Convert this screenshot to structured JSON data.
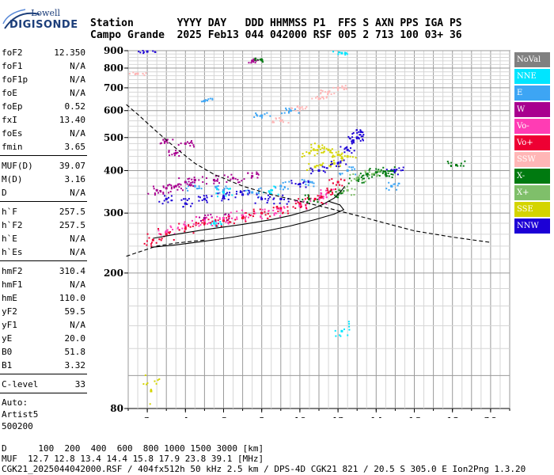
{
  "logo": {
    "line1": "Lowell",
    "line2": "DIGISONDE"
  },
  "header": {
    "line1": "Station       YYYY DAY   DDD HHMMSS P1  FFS S AXN PPS IGA PS",
    "line2": "Campo Grande  2025 Feb13 044 042000 RSF 005 2 713 100 03+ 36"
  },
  "params": {
    "group1": [
      {
        "label": "foF2",
        "value": "12.350"
      },
      {
        "label": "foF1",
        "value": "N/A"
      },
      {
        "label": "foF1p",
        "value": "N/A"
      },
      {
        "label": "foE",
        "value": "N/A"
      },
      {
        "label": "foEp",
        "value": "0.52"
      },
      {
        "label": "fxI",
        "value": "13.40"
      },
      {
        "label": "foEs",
        "value": "N/A"
      },
      {
        "label": "fmin",
        "value": "3.65"
      }
    ],
    "group2": [
      {
        "label": "MUF(D)",
        "value": "39.07"
      },
      {
        "label": "M(D)",
        "value": "3.16"
      },
      {
        "label": "D",
        "value": "N/A"
      }
    ],
    "group3": [
      {
        "label": "h`F",
        "value": "257.5"
      },
      {
        "label": "h`F2",
        "value": "257.5"
      },
      {
        "label": "h`E",
        "value": "N/A"
      },
      {
        "label": "h`Es",
        "value": "N/A"
      }
    ],
    "group4": [
      {
        "label": "hmF2",
        "value": "310.4"
      },
      {
        "label": "hmF1",
        "value": "N/A"
      },
      {
        "label": "hmE",
        "value": "110.0"
      },
      {
        "label": "yF2",
        "value": "59.5"
      },
      {
        "label": "yF1",
        "value": "N/A"
      },
      {
        "label": "yE",
        "value": "20.0"
      },
      {
        "label": "B0",
        "value": "51.8"
      },
      {
        "label": "B1",
        "value": "3.32"
      }
    ],
    "group5": [
      {
        "label": "C-level",
        "value": "33"
      }
    ],
    "auto": [
      "Auto:",
      "Artist5",
      "500200"
    ]
  },
  "legend": [
    {
      "label": "NoVal",
      "color": "#808080",
      "text_color": "#ffffff"
    },
    {
      "label": "NNE",
      "color": "#00e5ff",
      "text_color": "#ffffff"
    },
    {
      "label": "E",
      "color": "#3da5f4",
      "text_color": "#ffffff"
    },
    {
      "label": "W",
      "color": "#a8008f",
      "text_color": "#ffffff"
    },
    {
      "label": "Vo-",
      "color": "#ff3cb4",
      "text_color": "#ffffff"
    },
    {
      "label": "Vo+",
      "color": "#ee0033",
      "text_color": "#ffffff"
    },
    {
      "label": "SSW",
      "color": "#ffb6b6",
      "text_color": "#ffffff"
    },
    {
      "label": "X-",
      "color": "#007a10",
      "text_color": "#ffffff"
    },
    {
      "label": "X+",
      "color": "#7fbf6a",
      "text_color": "#ffffff"
    },
    {
      "label": "SSE",
      "color": "#d4d400",
      "text_color": "#ffffff"
    },
    {
      "label": "NNW",
      "color": "#1c00d6",
      "text_color": "#ffffff"
    }
  ],
  "chart_data": {
    "type": "scatter",
    "title": "",
    "xlabel": "",
    "ylabel": "",
    "xlim": [
      1,
      21
    ],
    "ylim": [
      80,
      900
    ],
    "x_ticks": [
      2,
      4,
      6,
      8,
      10,
      12,
      14,
      16,
      18,
      20
    ],
    "y_ticks": [
      80,
      200,
      300,
      400,
      500,
      600,
      700,
      800,
      900
    ],
    "grid": true,
    "legend_position": "right",
    "series": [
      {
        "name": "NNE",
        "points": [
          [
            12.2,
            885
          ],
          [
            12.2,
            135
          ],
          [
            8.5,
            350
          ],
          [
            5.5,
            280
          ],
          [
            6.0,
            345
          ]
        ]
      },
      {
        "name": "E",
        "points": [
          [
            4.5,
            360
          ],
          [
            6.0,
            350
          ],
          [
            7.5,
            345
          ],
          [
            9.0,
            360
          ],
          [
            10.5,
            370
          ],
          [
            12.5,
            400
          ],
          [
            8.0,
            580
          ],
          [
            9.5,
            600
          ],
          [
            5.0,
            640
          ],
          [
            14.8,
            360
          ]
        ]
      },
      {
        "name": "W",
        "points": [
          [
            2.5,
            350
          ],
          [
            3.0,
            355
          ],
          [
            3.5,
            360
          ],
          [
            4.0,
            370
          ],
          [
            4.5,
            375
          ],
          [
            5.5,
            375
          ],
          [
            6.5,
            380
          ],
          [
            7.5,
            385
          ],
          [
            6.0,
            290
          ],
          [
            5.0,
            290
          ],
          [
            3.0,
            490
          ],
          [
            3.5,
            450
          ],
          [
            4.0,
            480
          ],
          [
            7.5,
            840
          ]
        ]
      },
      {
        "name": "Vo-",
        "points": [
          [
            3.0,
            265
          ],
          [
            4.0,
            275
          ],
          [
            5.0,
            285
          ],
          [
            6.0,
            290
          ],
          [
            7.0,
            295
          ],
          [
            8.0,
            300
          ],
          [
            9.0,
            305
          ],
          [
            10.0,
            315
          ],
          [
            11.0,
            330
          ],
          [
            11.5,
            345
          ]
        ]
      },
      {
        "name": "Vo+",
        "points": [
          [
            2.3,
            250
          ],
          [
            3.0,
            260
          ],
          [
            4.0,
            270
          ],
          [
            5.0,
            280
          ],
          [
            6.0,
            285
          ],
          [
            7.0,
            290
          ],
          [
            8.0,
            300
          ],
          [
            9.0,
            310
          ],
          [
            10.0,
            320
          ],
          [
            10.8,
            330
          ],
          [
            11.5,
            345
          ],
          [
            12.0,
            370
          ]
        ]
      },
      {
        "name": "SSW",
        "points": [
          [
            9.0,
            560
          ],
          [
            10.0,
            610
          ],
          [
            11.0,
            650
          ],
          [
            11.5,
            680
          ],
          [
            12.0,
            700
          ],
          [
            1.5,
            770
          ]
        ]
      },
      {
        "name": "X-",
        "points": [
          [
            8.0,
            845
          ],
          [
            10.5,
            330
          ],
          [
            12.0,
            340
          ],
          [
            13.0,
            375
          ],
          [
            13.5,
            390
          ],
          [
            14.0,
            395
          ],
          [
            14.5,
            390
          ],
          [
            14.8,
            400
          ],
          [
            18.2,
            415
          ]
        ]
      },
      {
        "name": "X+",
        "points": [
          [
            12.5,
            350
          ],
          [
            13.0,
            380
          ],
          [
            13.8,
            390
          ]
        ]
      },
      {
        "name": "SSE",
        "points": [
          [
            10.5,
            450
          ],
          [
            11.0,
            470
          ],
          [
            11.5,
            460
          ],
          [
            12.0,
            445
          ],
          [
            10.8,
            410
          ],
          [
            11.8,
            420
          ],
          [
            12.5,
            440
          ],
          [
            2.2,
            90
          ]
        ]
      },
      {
        "name": "NNW",
        "points": [
          [
            2.0,
            895
          ],
          [
            3.0,
            330
          ],
          [
            4.0,
            320
          ],
          [
            5.0,
            330
          ],
          [
            6.0,
            335
          ],
          [
            7.0,
            340
          ],
          [
            8.0,
            330
          ],
          [
            9.0,
            330
          ],
          [
            10.0,
            365
          ],
          [
            11.0,
            400
          ],
          [
            12.0,
            420
          ],
          [
            12.5,
            460
          ],
          [
            13.0,
            500
          ],
          [
            13.2,
            520
          ],
          [
            12.8,
            490
          ],
          [
            15.0,
            400
          ]
        ]
      }
    ],
    "curves": [
      {
        "name": "O-mode profile",
        "style": "solid",
        "points": [
          [
            2.3,
            253
          ],
          [
            3.5,
            260
          ],
          [
            5.0,
            268
          ],
          [
            7.0,
            278
          ],
          [
            8.5,
            287
          ],
          [
            9.5,
            295
          ],
          [
            10.5,
            306
          ],
          [
            11.2,
            318
          ],
          [
            11.8,
            332
          ],
          [
            12.1,
            345
          ],
          [
            12.3,
            356
          ],
          [
            12.35,
            360
          ]
        ]
      },
      {
        "name": "N(h) profile",
        "style": "solid",
        "points": [
          [
            2.2,
            238
          ],
          [
            3.5,
            242
          ],
          [
            5.0,
            248
          ],
          [
            6.5,
            255
          ],
          [
            8.0,
            264
          ],
          [
            9.5,
            275
          ],
          [
            10.8,
            287
          ],
          [
            11.8,
            298
          ],
          [
            12.3,
            307
          ],
          [
            12.1,
            317
          ],
          [
            11.5,
            325
          ]
        ]
      },
      {
        "name": "MUF curve",
        "style": "dashed",
        "points": [
          [
            0.9,
            625
          ],
          [
            1.5,
            585
          ],
          [
            2.5,
            520
          ],
          [
            3.5,
            465
          ],
          [
            4.5,
            420
          ],
          [
            5.5,
            390
          ],
          [
            7.0,
            360
          ],
          [
            8.5,
            340
          ],
          [
            10.0,
            325
          ],
          [
            11.5,
            310
          ],
          [
            13.0,
            295
          ],
          [
            14.5,
            280
          ],
          [
            16.0,
            266
          ],
          [
            18.0,
            255
          ],
          [
            20.0,
            246
          ]
        ]
      },
      {
        "name": "MUF curve lower",
        "style": "dashed",
        "points": [
          [
            0.9,
            224
          ],
          [
            1.5,
            230
          ],
          [
            2.5,
            240
          ],
          [
            3.5,
            245
          ],
          [
            5.0,
            250
          ]
        ]
      }
    ]
  },
  "footer": {
    "d_row": "D      100  200  400  600  800 1000 1500 3000 [km]",
    "muf_row": "MUF  12.7 12.8 13.4 14.4 15.8 17.9 23.8 39.1 [MHz]",
    "file_row": "CGK21_2025044042000.RSF / 404fx512h 50 kHz 2.5 km / DPS-4D CGK21 821 / 20.5 S 305.0 E Ion2Png 1.3.20"
  }
}
